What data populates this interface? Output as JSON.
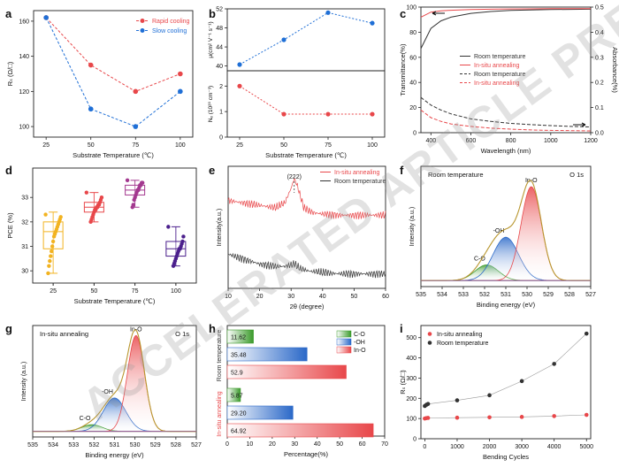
{
  "watermark": "ACCELERATED ARTICLE PREVIEW",
  "chart_data": [
    {
      "panel": "a",
      "type": "line",
      "xlabel": "Substrate Temperature (℃)",
      "ylabel": "Rₛ (Ω/□)",
      "x": [
        25,
        50,
        75,
        100
      ],
      "xlim": [
        18,
        107
      ],
      "ylim": [
        94,
        166
      ],
      "xticks": [
        "25",
        "50",
        "75",
        "100"
      ],
      "yticks": [
        "100",
        "120",
        "140",
        "160"
      ],
      "legend": "top-right",
      "series": [
        {
          "name": "Rapid cooling",
          "color": "#e8474a",
          "values": [
            162,
            135,
            120,
            130
          ]
        },
        {
          "name": "Slow cooling",
          "color": "#1f6fd6",
          "values": [
            162,
            110,
            100,
            120
          ]
        }
      ]
    },
    {
      "panel": "b",
      "type": "line",
      "xlabel": "Substrate Temperature (℃)",
      "x": [
        25,
        50,
        75,
        100
      ],
      "xlim": [
        18,
        107
      ],
      "xticks": [
        "25",
        "50",
        "75",
        "100"
      ],
      "subplots": [
        {
          "ylabel": "μ(cm² V⁻¹ s⁻¹)",
          "ylim": [
            39,
            52
          ],
          "yticks": [
            "40",
            "44",
            "48",
            "52"
          ],
          "series": [
            {
              "color": "#1f6fd6",
              "values": [
                40.3,
                45.5,
                51.2,
                49.0
              ]
            }
          ]
        },
        {
          "ylabel": "Nₑ (10²⁰ cm⁻³)",
          "ylim": [
            0,
            2.6
          ],
          "yticks": [
            "0",
            "1",
            "2"
          ],
          "series": [
            {
              "color": "#e8474a",
              "values": [
                2.0,
                0.9,
                0.9,
                0.9
              ]
            }
          ]
        }
      ]
    },
    {
      "panel": "c",
      "type": "line",
      "xlabel": "Wavelength (nm)",
      "ylabel": "Transmittance(%)",
      "ylabel2": "Absorbance(%)",
      "xlim": [
        350,
        1200
      ],
      "ylim": [
        0,
        100
      ],
      "y2lim": [
        0,
        0.5
      ],
      "xticks": [
        "400",
        "600",
        "800",
        "1000",
        "1200"
      ],
      "yticks": [
        "0",
        "20",
        "40",
        "60",
        "80",
        "100"
      ],
      "y2ticks": [
        "0.0",
        "0.1",
        "0.2",
        "0.3",
        "0.4",
        "0.5"
      ],
      "legend": "center-right",
      "series": [
        {
          "name": "Room temperature",
          "axis": "left",
          "color": "#333333",
          "x": [
            350,
            400,
            450,
            500,
            600,
            700,
            800,
            900,
            1000,
            1100,
            1200
          ],
          "values": [
            67,
            83,
            89,
            92,
            95,
            96.5,
            97.3,
            97.7,
            98,
            98.2,
            98.3
          ]
        },
        {
          "name": "In-situ annealing",
          "axis": "left",
          "color": "#e8474a",
          "x": [
            350,
            400,
            450,
            500,
            600,
            700,
            800,
            900,
            1000,
            1100,
            1200
          ],
          "values": [
            92,
            96,
            97,
            97.5,
            98,
            98.3,
            98.5,
            98.6,
            98.7,
            98.8,
            98.8
          ]
        },
        {
          "name": "Room temperature",
          "axis": "right",
          "color": "#333333",
          "x": [
            350,
            400,
            450,
            500,
            600,
            700,
            800,
            900,
            1000,
            1100,
            1200
          ],
          "values": [
            0.14,
            0.11,
            0.09,
            0.075,
            0.055,
            0.045,
            0.037,
            0.032,
            0.028,
            0.025,
            0.023
          ]
        },
        {
          "name": "In-situ annealing",
          "axis": "right",
          "color": "#e8474a",
          "x": [
            350,
            400,
            450,
            500,
            600,
            700,
            800,
            900,
            1000,
            1100,
            1200
          ],
          "values": [
            0.09,
            0.06,
            0.045,
            0.035,
            0.025,
            0.018,
            0.014,
            0.011,
            0.009,
            0.008,
            0.007
          ]
        }
      ]
    },
    {
      "panel": "d",
      "type": "scatter",
      "xlabel": "Substrate  Temperature (℃)",
      "ylabel": "PCE (%)",
      "categories": [
        "25",
        "50",
        "75",
        "100"
      ],
      "ylim": [
        29.5,
        34.2
      ],
      "yticks": [
        "30",
        "31",
        "32",
        "33"
      ],
      "groups": [
        {
          "category": "25",
          "color": "#f2b321",
          "q1": 30.9,
          "median": 31.6,
          "q3": 32.0,
          "min": 29.9,
          "max": 32.4,
          "points": [
            32.3,
            32.2,
            32.1,
            32.0,
            31.9,
            31.8,
            31.7,
            31.6,
            31.5,
            31.4,
            31.2,
            31.0,
            30.8,
            30.6,
            30.4,
            30.2,
            29.9
          ]
        },
        {
          "category": "50",
          "color": "#e8474a",
          "q1": 32.4,
          "median": 32.6,
          "q3": 32.8,
          "min": 32.0,
          "max": 33.2,
          "points": [
            33.2,
            33.0,
            32.9,
            32.8,
            32.7,
            32.7,
            32.6,
            32.6,
            32.5,
            32.5,
            32.4,
            32.3,
            32.2,
            32.1,
            32.0
          ]
        },
        {
          "category": "75",
          "color": "#a3388f",
          "q1": 33.1,
          "median": 33.3,
          "q3": 33.5,
          "min": 32.6,
          "max": 33.7,
          "points": [
            33.7,
            33.6,
            33.6,
            33.5,
            33.5,
            33.4,
            33.3,
            33.3,
            33.2,
            33.1,
            33.0,
            32.9,
            32.7,
            32.6
          ]
        },
        {
          "category": "100",
          "color": "#4b1f8c",
          "q1": 30.6,
          "median": 30.9,
          "q3": 31.2,
          "min": 30.2,
          "max": 31.8,
          "points": [
            31.8,
            31.4,
            31.2,
            31.1,
            31.0,
            30.9,
            30.9,
            30.8,
            30.7,
            30.6,
            30.5,
            30.4,
            30.3,
            30.2
          ]
        }
      ]
    },
    {
      "panel": "e",
      "type": "line",
      "xlabel": "2θ (degree)",
      "ylabel": "Intensity(a.u.)",
      "xlim": [
        10,
        60
      ],
      "xticks": [
        "10",
        "20",
        "30",
        "40",
        "50",
        "60"
      ],
      "annotation": "(222)",
      "annotation_x": 31,
      "legend": "top-right",
      "series": [
        {
          "name": "In-situ annealing",
          "color": "#e8474a",
          "x": [
            10,
            15,
            20,
            25,
            28,
            30,
            31,
            32,
            34,
            37,
            40,
            45,
            50,
            55,
            60
          ],
          "values": [
            0.72,
            0.7,
            0.68,
            0.66,
            0.7,
            0.82,
            0.9,
            0.84,
            0.66,
            0.62,
            0.61,
            0.6,
            0.6,
            0.6,
            0.6
          ]
        },
        {
          "name": "Room temperature",
          "color": "#333333",
          "x": [
            10,
            15,
            20,
            25,
            28,
            31,
            33,
            36,
            40,
            45,
            50,
            55,
            60
          ],
          "values": [
            0.28,
            0.24,
            0.2,
            0.18,
            0.18,
            0.2,
            0.16,
            0.14,
            0.13,
            0.12,
            0.12,
            0.12,
            0.12
          ]
        }
      ]
    },
    {
      "panel": "f",
      "type": "area",
      "title": "Room temperature",
      "corner_label": "O 1s",
      "xlabel": "Binding energy (eV)",
      "ylabel": "Intensity (a.u.)",
      "xlim": [
        535,
        527
      ],
      "xticks": [
        "535",
        "534",
        "533",
        "532",
        "531",
        "530",
        "529",
        "528",
        "527"
      ],
      "peaks": [
        {
          "name": "C-O",
          "center": 531.9,
          "height": 0.13,
          "width": 0.55,
          "color": "#3a9a2a"
        },
        {
          "name": "-OH",
          "center": 531.0,
          "height": 0.36,
          "width": 0.6,
          "color": "#2a68c8"
        },
        {
          "name": "In-O",
          "center": 529.8,
          "height": 0.78,
          "width": 0.48,
          "color": "#e8474a"
        }
      ]
    },
    {
      "panel": "g",
      "type": "area",
      "title": "In-situ annealing",
      "corner_label": "O 1s",
      "xlabel": "Binding energy (eV)",
      "ylabel": "Intensity (a.u.)",
      "xlim": [
        535,
        527
      ],
      "xticks": [
        "535",
        "534",
        "533",
        "532",
        "531",
        "530",
        "529",
        "528",
        "527"
      ],
      "peaks": [
        {
          "name": "C-O",
          "center": 532.1,
          "height": 0.06,
          "width": 0.5,
          "color": "#3a9a2a"
        },
        {
          "name": "-OH",
          "center": 531.0,
          "height": 0.3,
          "width": 0.55,
          "color": "#2a68c8"
        },
        {
          "name": "In-O",
          "center": 529.95,
          "height": 0.86,
          "width": 0.42,
          "color": "#e8474a"
        }
      ]
    },
    {
      "panel": "h",
      "type": "bar",
      "orientation": "horizontal",
      "xlabel": "Percentage(%)",
      "xlim": [
        0,
        70
      ],
      "xticks": [
        "0",
        "10",
        "20",
        "30",
        "40",
        "50",
        "60",
        "70"
      ],
      "legend": "top-right",
      "legend_entries": [
        {
          "name": "C-O",
          "color": "#3a9a2a"
        },
        {
          "name": "-OH",
          "color": "#2a68c8"
        },
        {
          "name": "In-O",
          "color": "#e8474a"
        }
      ],
      "groups": [
        {
          "label": "Room temperature",
          "color": "#333333",
          "bars": [
            {
              "name": "C-O",
              "value": 11.62
            },
            {
              "name": "-OH",
              "value": 35.48
            },
            {
              "name": "In-O",
              "value": 52.9
            }
          ],
          "value_labels": [
            "11.62",
            "35.48",
            "52.9"
          ]
        },
        {
          "label": "In-situ annealing",
          "color": "#e8474a",
          "bars": [
            {
              "name": "C-O",
              "value": 5.87
            },
            {
              "name": "-OH",
              "value": 29.2
            },
            {
              "name": "In-O",
              "value": 64.92
            }
          ],
          "value_labels": [
            "5.87",
            "29.20",
            "64.92"
          ]
        }
      ]
    },
    {
      "panel": "i",
      "type": "line",
      "xlabel": "Bending Cycles",
      "ylabel": "Rₛ (Ω/□)",
      "xlim": [
        -120,
        5130
      ],
      "ylim": [
        0,
        560
      ],
      "xticks": [
        "0",
        "1000",
        "2000",
        "3000",
        "4000",
        "5000"
      ],
      "yticks": [
        "0",
        "100",
        "200",
        "300",
        "400",
        "500"
      ],
      "legend": "top-left",
      "series": [
        {
          "name": "In-situ annealing",
          "color": "#e8474a",
          "x": [
            0,
            50,
            100,
            1000,
            2000,
            3000,
            4000,
            5000
          ],
          "values": [
            100,
            102,
            103,
            104,
            106,
            108,
            112,
            118
          ]
        },
        {
          "name": "Room temperature",
          "color": "#333333",
          "x": [
            0,
            50,
            100,
            1000,
            2000,
            3000,
            4000,
            5000
          ],
          "values": [
            162,
            168,
            172,
            190,
            215,
            285,
            370,
            520
          ]
        }
      ]
    }
  ]
}
